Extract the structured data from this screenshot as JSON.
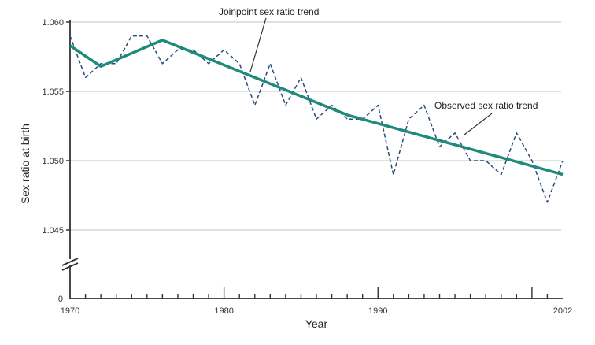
{
  "chart_data": {
    "type": "line",
    "title": "",
    "xlabel": "Year",
    "ylabel": "Sex ratio at birth",
    "xlim": [
      1970,
      2002
    ],
    "ylim": [
      1.045,
      1.06
    ],
    "y_axis_break": true,
    "y_ticks": [
      {
        "value": 1.06,
        "label": "1.060"
      },
      {
        "value": 1.055,
        "label": "1.055"
      },
      {
        "value": 1.05,
        "label": "1.050"
      },
      {
        "value": 1.045,
        "label": "1.045"
      }
    ],
    "y_zero_label": "0",
    "x_major_ticks": [
      {
        "value": 1970,
        "label": "1970"
      },
      {
        "value": 1980,
        "label": "1980"
      },
      {
        "value": 1990,
        "label": "1990"
      },
      {
        "value": 2002,
        "label": "2002"
      }
    ],
    "x_long_ticks": [
      1980,
      1990,
      2000
    ],
    "grid": true,
    "series": [
      {
        "name": "Observed sex ratio trend",
        "style": "dashed",
        "color": "#2a4a7a",
        "x": [
          1970,
          1971,
          1972,
          1973,
          1974,
          1975,
          1976,
          1977,
          1978,
          1979,
          1980,
          1981,
          1982,
          1983,
          1984,
          1985,
          1986,
          1987,
          1988,
          1989,
          1990,
          1991,
          1992,
          1993,
          1994,
          1995,
          1996,
          1997,
          1998,
          1999,
          2000,
          2001,
          2002
        ],
        "values": [
          1.059,
          1.056,
          1.057,
          1.057,
          1.059,
          1.059,
          1.057,
          1.058,
          1.058,
          1.057,
          1.058,
          1.057,
          1.054,
          1.057,
          1.054,
          1.056,
          1.053,
          1.054,
          1.053,
          1.053,
          1.054,
          1.049,
          1.053,
          1.054,
          1.051,
          1.052,
          1.05,
          1.05,
          1.049,
          1.052,
          1.05,
          1.047,
          1.05
        ]
      },
      {
        "name": "Joinpoint sex ratio trend",
        "style": "solid",
        "color": "#1f8a7a",
        "x": [
          1970,
          1972,
          1976,
          1988,
          2002
        ],
        "values": [
          1.0583,
          1.0568,
          1.0587,
          1.0533,
          1.049
        ]
      }
    ],
    "annotations": [
      {
        "text": "Joinpoint sex ratio trend",
        "series": "Joinpoint sex ratio trend"
      },
      {
        "text": "Observed sex ratio trend",
        "series": "Observed sex ratio trend"
      }
    ]
  }
}
